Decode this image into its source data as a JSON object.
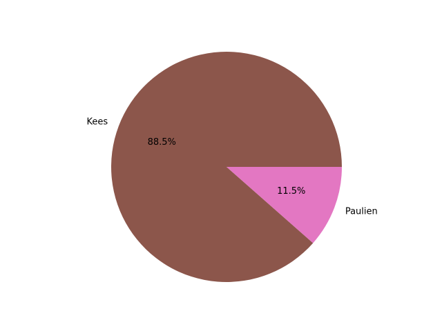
{
  "chart_data": {
    "type": "pie",
    "slices": [
      {
        "label": "Kees",
        "percent_label": "88.5%",
        "value": 88.5,
        "color": "#8c564b"
      },
      {
        "label": "Paulien",
        "percent_label": "11.5%",
        "value": 11.5,
        "color": "#e377c2"
      }
    ],
    "start_angle_deg": 0,
    "direction": "counterclockwise",
    "autopct": true
  }
}
